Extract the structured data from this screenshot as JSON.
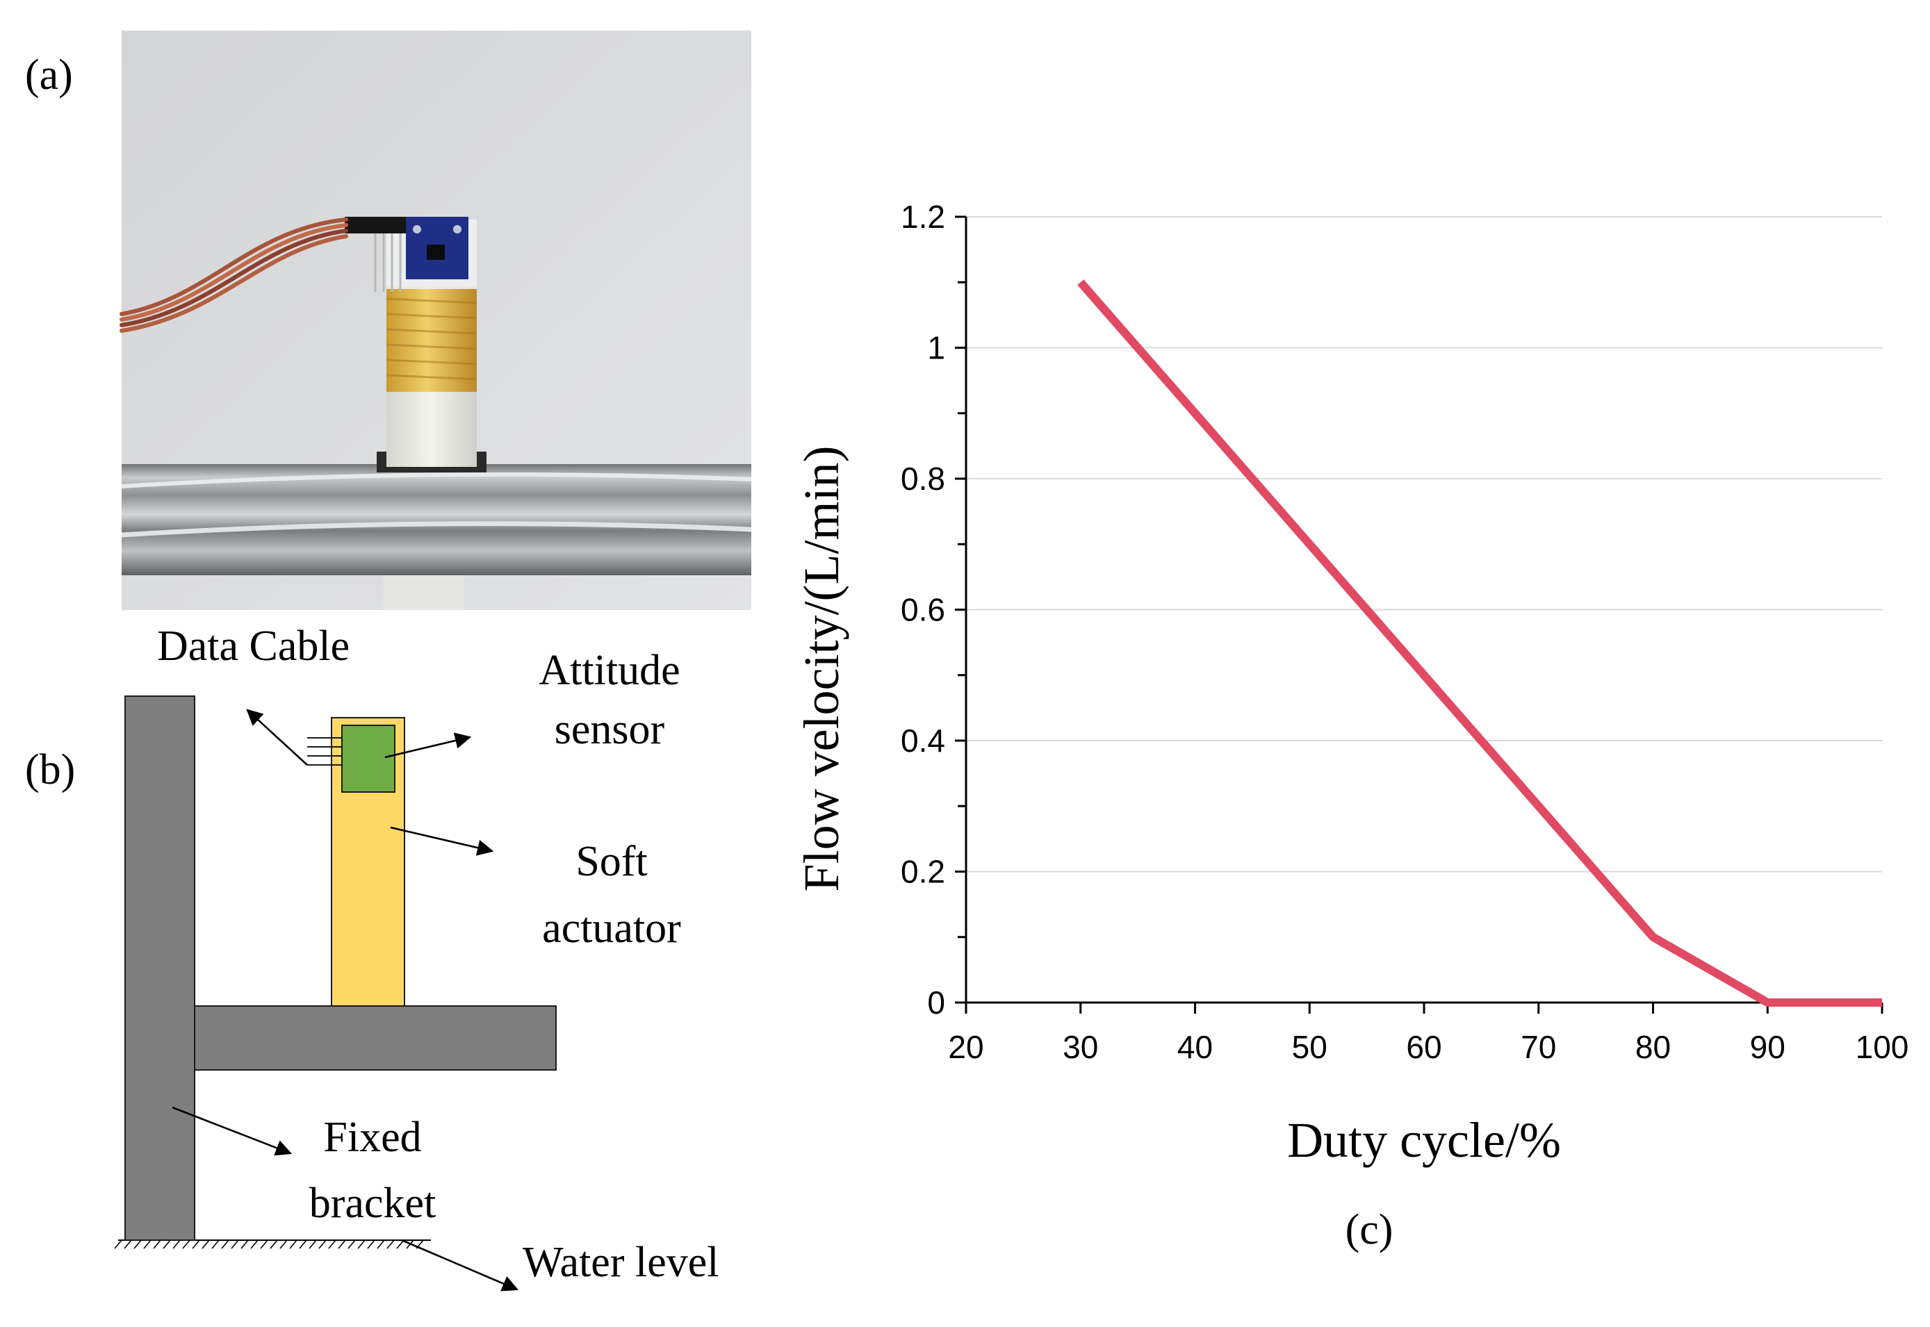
{
  "panels": {
    "a": {
      "label": "(a)"
    },
    "b": {
      "label": "(b)",
      "callouts": {
        "data_cable": "Data Cable",
        "attitude_sensor": [
          "Attitude",
          "sensor"
        ],
        "soft_actuator": [
          "Soft",
          "actuator"
        ],
        "fixed_bracket": [
          "Fixed",
          "bracket"
        ],
        "water_level": "Water level"
      }
    },
    "c": {
      "label": "(c)"
    }
  },
  "colors": {
    "bracket": "#7f7f7f",
    "actuator": "#ffd966",
    "sensor": "#70ad47",
    "line": "#e04a62",
    "grid": "#d9d9d9",
    "photo_wall": "#d8d9dc",
    "photo_rail": "#9a9c9e"
  },
  "chart_data": {
    "type": "line",
    "title": "",
    "xlabel": "Duty cycle/%",
    "ylabel": "Flow velocity/(L/min)",
    "xlim": [
      20,
      100
    ],
    "ylim": [
      0,
      1.2
    ],
    "xticks": [
      "20",
      "30",
      "40",
      "50",
      "60",
      "70",
      "80",
      "90",
      "100"
    ],
    "yticks": [
      "0",
      "0.2",
      "0.4",
      "0.6",
      "0.8",
      "1",
      "1.2"
    ],
    "grid": true,
    "series": [
      {
        "name": "Flow velocity",
        "x": [
          30,
          40,
          50,
          60,
          70,
          80,
          90,
          100
        ],
        "y": [
          1.1,
          0.9,
          0.7,
          0.5,
          0.3,
          0.1,
          0,
          0
        ]
      }
    ]
  }
}
